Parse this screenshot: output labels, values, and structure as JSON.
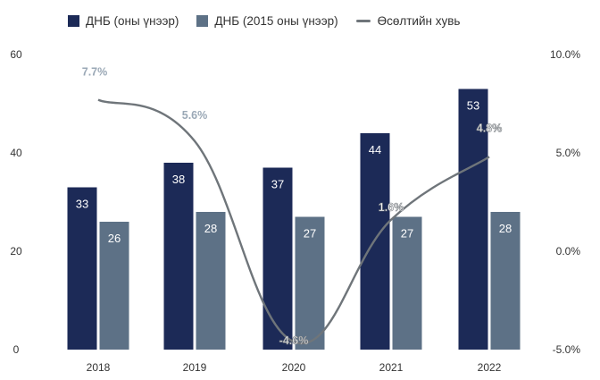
{
  "chart_data": {
    "type": "bar",
    "categories": [
      "2018",
      "2019",
      "2020",
      "2021",
      "2022"
    ],
    "series": [
      {
        "name": "ДНБ (оны үнээр)",
        "values": [
          33,
          38,
          37,
          44,
          53
        ],
        "labels": [
          "33",
          "38",
          "37",
          "44",
          "53"
        ],
        "color": "#1c2a57",
        "axis": "left"
      },
      {
        "name": "ДНБ (2015 оны үнээр)",
        "values": [
          26,
          28,
          27,
          27,
          28
        ],
        "labels": [
          "26",
          "28",
          "27",
          "27",
          "28"
        ],
        "color": "#5d7186",
        "axis": "left"
      },
      {
        "name": "Өсөлтийн хувь",
        "type": "line",
        "values": [
          7.7,
          5.6,
          -4.6,
          1.6,
          4.8
        ],
        "labels": [
          "7.7%",
          "5.6%",
          "-4.6%",
          "1.6%",
          "4.8%"
        ],
        "color": "#8a8f95",
        "axis": "right"
      }
    ],
    "y_left": {
      "range": [
        0,
        60
      ],
      "ticks": [
        "0",
        "20",
        "40",
        "60"
      ]
    },
    "y_right": {
      "range": [
        -5,
        10
      ],
      "ticks": [
        "-5.0%",
        "0.0%",
        "5.0%",
        "10.0%"
      ]
    },
    "legend_position": "top",
    "grid": false
  }
}
